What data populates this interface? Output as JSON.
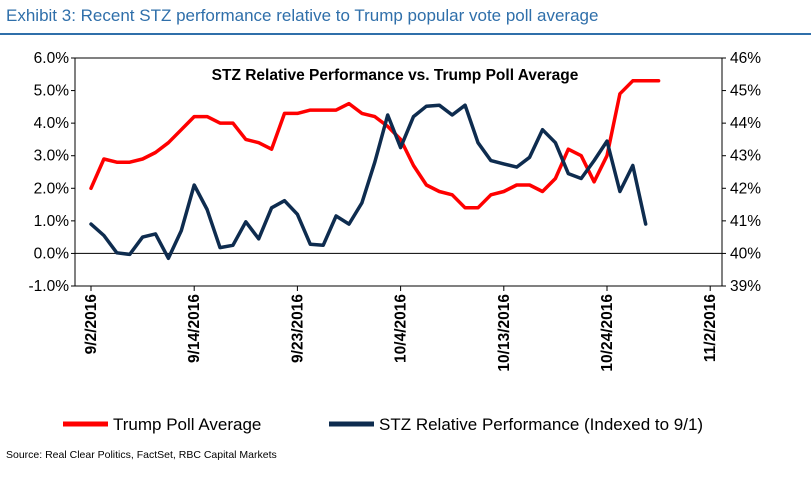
{
  "header": {
    "exhibit_title": "Exhibit 3: Recent STZ performance relative to Trump popular vote poll average"
  },
  "source_note": "Source: Real Clear Politics, FactSet, RBC Capital Markets",
  "colors": {
    "trump": "#ff0000",
    "stz": "#0e2c4f",
    "accent": "#2f6faa"
  },
  "chart_data": {
    "type": "line",
    "title": "STZ Relative Performance vs. Trump Poll Average",
    "x_tick_labels": [
      "9/2/2016",
      "9/14/2016",
      "9/23/2016",
      "10/4/2016",
      "10/13/2016",
      "10/24/2016",
      "11/2/2016"
    ],
    "x_tick_indices": [
      0,
      8,
      16,
      24,
      32,
      40,
      48
    ],
    "y_left": {
      "ticks": [
        "6.0%",
        "5.0%",
        "4.0%",
        "3.0%",
        "2.0%",
        "1.0%",
        "0.0%",
        "-1.0%"
      ],
      "ylim": [
        -1.0,
        6.0
      ]
    },
    "y_right": {
      "ticks": [
        "46%",
        "45%",
        "44%",
        "43%",
        "42%",
        "41%",
        "40%",
        "39%"
      ],
      "ylim": [
        39,
        46
      ]
    },
    "series": [
      {
        "name": "Trump Poll Average",
        "axis": "right",
        "values": [
          42.0,
          42.9,
          42.8,
          42.8,
          42.9,
          43.1,
          43.4,
          43.8,
          44.2,
          44.2,
          44.0,
          44.0,
          43.5,
          43.4,
          43.2,
          44.3,
          44.3,
          44.4,
          44.4,
          44.4,
          44.6,
          44.3,
          44.2,
          43.9,
          43.5,
          42.7,
          42.1,
          41.9,
          41.8,
          41.4,
          41.4,
          41.8,
          41.9,
          42.1,
          42.1,
          41.9,
          42.3,
          43.2,
          43.0,
          42.2,
          43.0,
          44.9,
          45.3,
          45.3,
          45.3
        ]
      },
      {
        "name": "STZ Relative Performance (Indexed to 9/1)",
        "axis": "left",
        "values": [
          0.9,
          0.55,
          0.02,
          -0.03,
          0.5,
          0.6,
          -0.15,
          0.7,
          2.1,
          1.35,
          0.18,
          0.25,
          0.97,
          0.45,
          1.4,
          1.62,
          1.2,
          0.28,
          0.25,
          1.15,
          0.9,
          1.55,
          2.8,
          4.25,
          3.25,
          4.2,
          4.52,
          4.55,
          4.25,
          4.55,
          3.4,
          2.85,
          2.75,
          2.65,
          2.95,
          3.8,
          3.4,
          2.45,
          2.3,
          2.85,
          3.45,
          1.9,
          2.7,
          0.9
        ]
      }
    ],
    "legend": [
      {
        "label": "Trump Poll Average"
      },
      {
        "label": "STZ Relative Performance (Indexed to 9/1)"
      }
    ],
    "legend_position": "bottom"
  }
}
